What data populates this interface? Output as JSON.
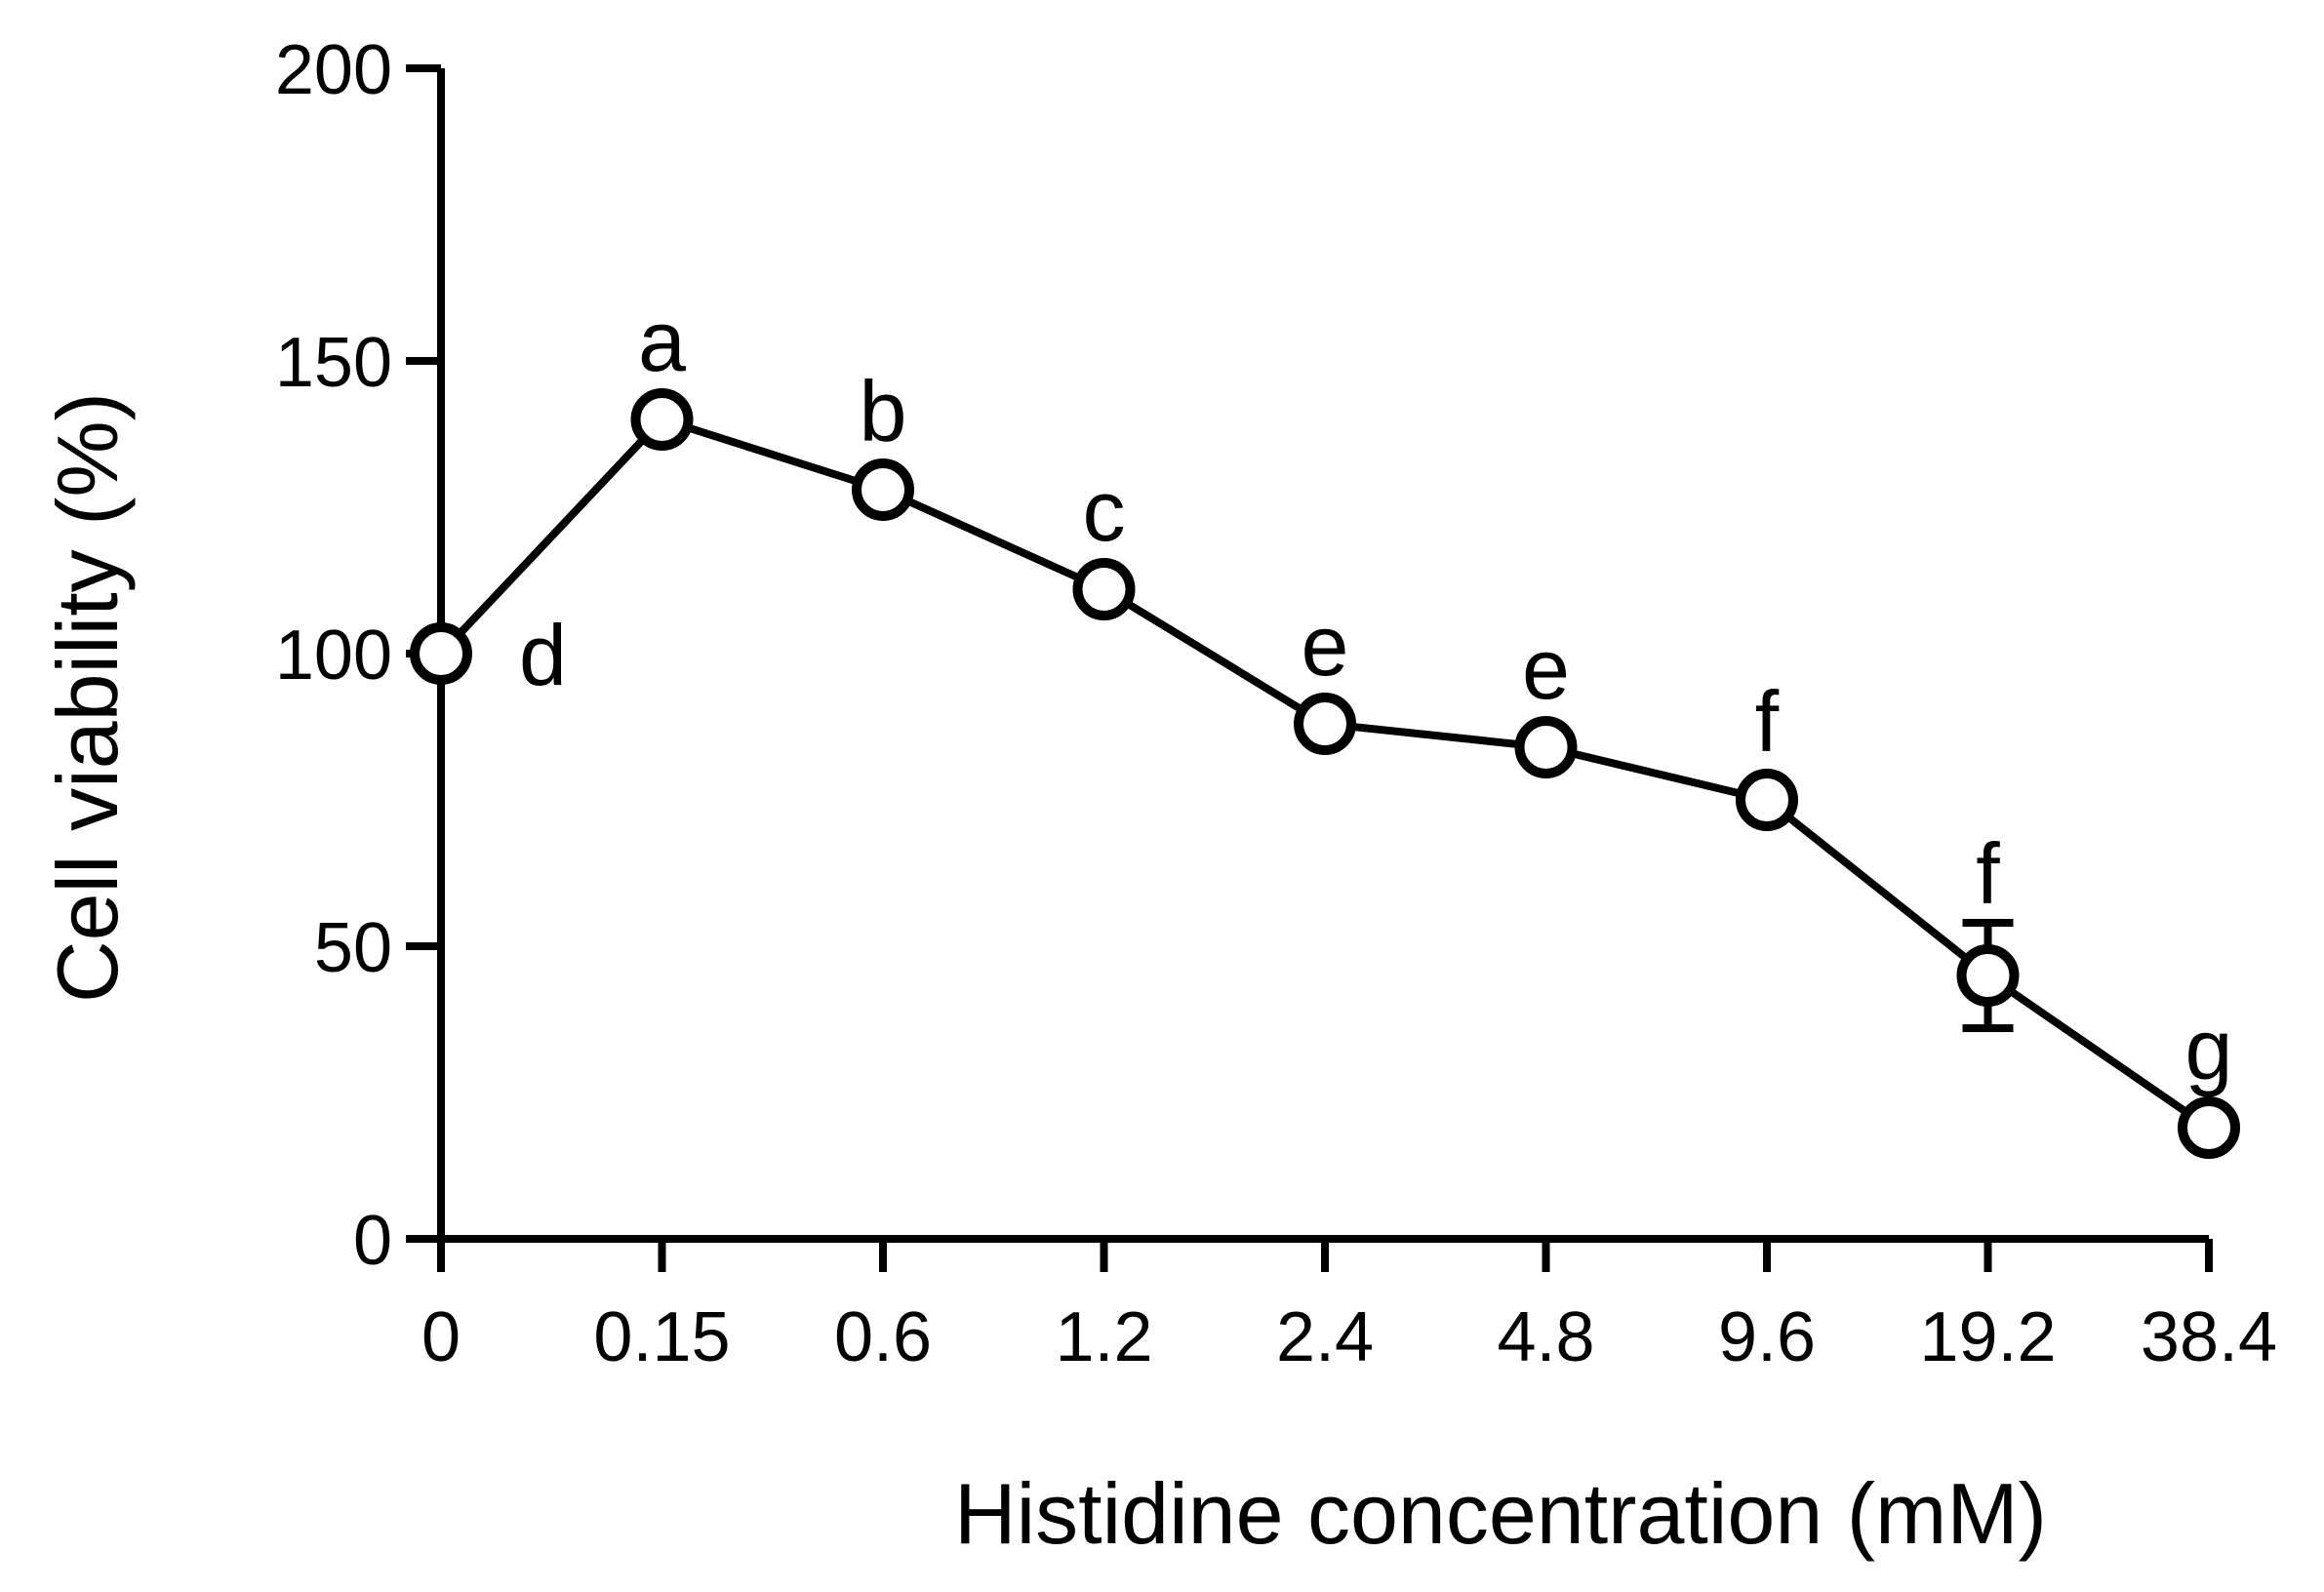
{
  "chart_data": {
    "type": "line",
    "xlabel": "Histidine concentration (mM)",
    "ylabel": "Cell viability (%)",
    "ylim": [
      0,
      200
    ],
    "yticks": [
      0,
      50,
      100,
      150,
      200
    ],
    "categories": [
      "0",
      "0.15",
      "0.6",
      "1.2",
      "2.4",
      "4.8",
      "9.6",
      "19.2",
      "38.4"
    ],
    "values": [
      100,
      140,
      128,
      111,
      88,
      84,
      75,
      45,
      19
    ],
    "errors": [
      0,
      0,
      0,
      0,
      0,
      0,
      0,
      9,
      0
    ],
    "significance_letters": [
      "d",
      "a",
      "b",
      "c",
      "e",
      "e",
      "f",
      "f",
      "g"
    ],
    "grid": false,
    "legend": "none",
    "marker": "open-circle",
    "line_color": "#000000"
  }
}
